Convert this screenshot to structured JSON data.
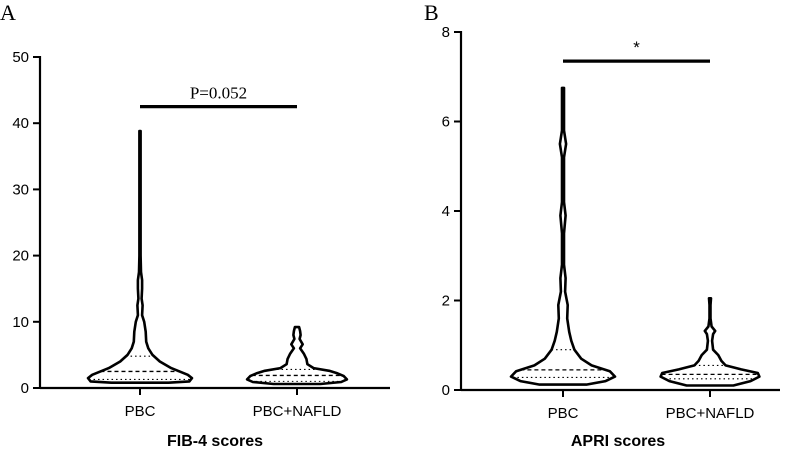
{
  "chart_data": [
    {
      "type": "violin",
      "panel": "A",
      "xlabel": "FIB-4 scores",
      "ylabel": "",
      "ylim": [
        0,
        50
      ],
      "yticks": [
        0,
        10,
        20,
        30,
        40,
        50
      ],
      "categories": [
        "PBC",
        "PBC+NAFLD"
      ],
      "series": [
        {
          "category": "PBC",
          "max": 38.8,
          "q3": 4.8,
          "median": 2.5,
          "q1": 1.3,
          "profile": [
            [
              0.8,
              0.55
            ],
            [
              1.0,
              0.95
            ],
            [
              1.5,
              1.0
            ],
            [
              2.0,
              0.92
            ],
            [
              3.0,
              0.6
            ],
            [
              4.0,
              0.38
            ],
            [
              5.0,
              0.24
            ],
            [
              6.0,
              0.16
            ],
            [
              7.0,
              0.12
            ],
            [
              8.5,
              0.11
            ],
            [
              10.0,
              0.08
            ],
            [
              11.0,
              0.04
            ],
            [
              12.5,
              0.05
            ],
            [
              13.5,
              0.03
            ],
            [
              15.0,
              0.04
            ],
            [
              16.3,
              0.04
            ],
            [
              17.5,
              0.02
            ],
            [
              20.0,
              0.012
            ],
            [
              30.0,
              0.012
            ],
            [
              38.8,
              0.012
            ]
          ]
        },
        {
          "category": "PBC+NAFLD",
          "max": 9.2,
          "q3": 2.8,
          "median": 1.9,
          "q1": 1.0,
          "profile": [
            [
              0.6,
              0.45
            ],
            [
              0.9,
              0.85
            ],
            [
              1.3,
              0.96
            ],
            [
              1.8,
              0.9
            ],
            [
              2.2,
              0.78
            ],
            [
              2.6,
              0.62
            ],
            [
              3.0,
              0.32
            ],
            [
              3.6,
              0.2
            ],
            [
              4.4,
              0.18
            ],
            [
              5.2,
              0.13
            ],
            [
              6.0,
              0.06
            ],
            [
              6.6,
              0.11
            ],
            [
              7.4,
              0.05
            ],
            [
              8.0,
              0.07
            ],
            [
              8.6,
              0.06
            ],
            [
              9.2,
              0.04
            ]
          ]
        }
      ],
      "annotation": {
        "text": "P=0.052",
        "from": "PBC",
        "to": "PBC+NAFLD",
        "y": 42.5
      }
    },
    {
      "type": "violin",
      "panel": "B",
      "xlabel": "APRI scores",
      "ylabel": "",
      "ylim": [
        0,
        8
      ],
      "yticks": [
        0,
        2,
        4,
        6,
        8
      ],
      "categories": [
        "PBC",
        "PBC+NAFLD"
      ],
      "series": [
        {
          "category": "PBC",
          "max": 6.75,
          "q3": 0.9,
          "median": 0.45,
          "q1": 0.28,
          "profile": [
            [
              0.12,
              0.45
            ],
            [
              0.2,
              0.82
            ],
            [
              0.3,
              1.0
            ],
            [
              0.42,
              0.9
            ],
            [
              0.55,
              0.55
            ],
            [
              0.7,
              0.35
            ],
            [
              0.9,
              0.22
            ],
            [
              1.1,
              0.16
            ],
            [
              1.3,
              0.12
            ],
            [
              1.6,
              0.08
            ],
            [
              1.9,
              0.09
            ],
            [
              2.2,
              0.04
            ],
            [
              2.5,
              0.05
            ],
            [
              2.8,
              0.02
            ],
            [
              3.5,
              0.02
            ],
            [
              3.9,
              0.05
            ],
            [
              4.2,
              0.02
            ],
            [
              5.2,
              0.02
            ],
            [
              5.5,
              0.06
            ],
            [
              5.8,
              0.02
            ],
            [
              6.75,
              0.02
            ]
          ]
        },
        {
          "category": "PBC+NAFLD",
          "max": 2.05,
          "q3": 0.55,
          "median": 0.35,
          "q1": 0.25,
          "profile": [
            [
              0.1,
              0.45
            ],
            [
              0.2,
              0.78
            ],
            [
              0.3,
              0.95
            ],
            [
              0.38,
              0.92
            ],
            [
              0.46,
              0.6
            ],
            [
              0.55,
              0.3
            ],
            [
              0.65,
              0.22
            ],
            [
              0.78,
              0.16
            ],
            [
              0.9,
              0.06
            ],
            [
              1.1,
              0.04
            ],
            [
              1.25,
              0.06
            ],
            [
              1.32,
              0.1
            ],
            [
              1.42,
              0.03
            ],
            [
              1.6,
              0.01
            ],
            [
              1.9,
              0.01
            ],
            [
              2.05,
              0.02
            ]
          ]
        }
      ],
      "annotation": {
        "text": "*",
        "from": "PBC",
        "to": "PBC+NAFLD",
        "y": 7.35
      }
    }
  ]
}
